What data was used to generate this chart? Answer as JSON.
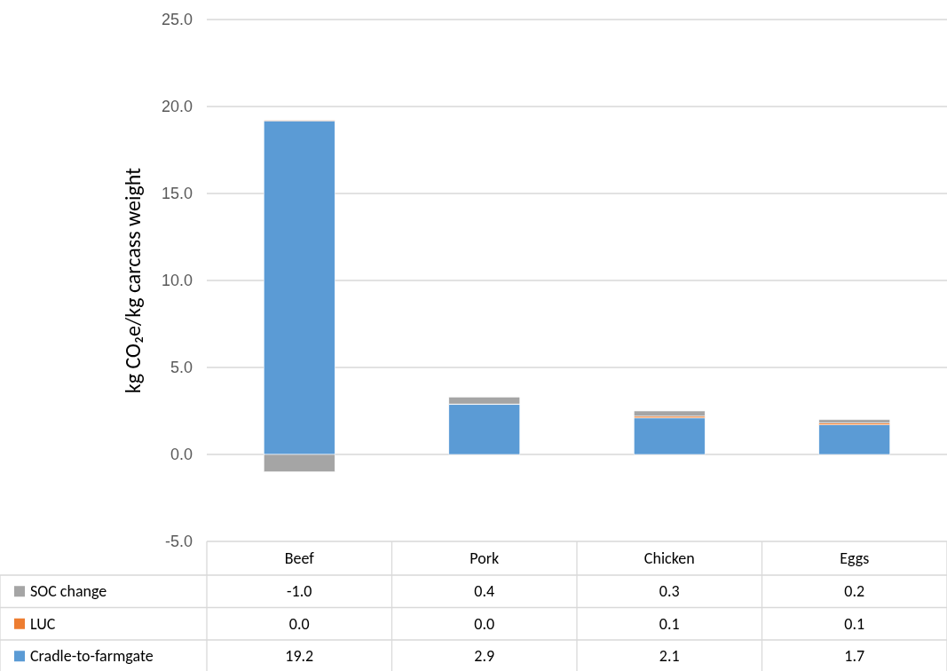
{
  "chart_data": {
    "type": "bar",
    "stacked": true,
    "ylabel": "kg CO₂e/kg carcass weight",
    "categories": [
      "Beef",
      "Pork",
      "Chicken",
      "Eggs"
    ],
    "series": [
      {
        "name": "Cradle-to-farmgate",
        "color": "#5b9bd5",
        "values": [
          19.2,
          2.9,
          2.1,
          1.7
        ],
        "value_labels": [
          "19.2",
          "2.9",
          "2.1",
          "1.7"
        ]
      },
      {
        "name": "LUC",
        "color": "#ed7d31",
        "values": [
          0.0,
          0.0,
          0.1,
          0.1
        ],
        "value_labels": [
          "0.0",
          "0.0",
          "0.1",
          "0.1"
        ]
      },
      {
        "name": "SOC change",
        "color": "#a5a5a5",
        "values": [
          -1.0,
          0.4,
          0.3,
          0.2
        ],
        "value_labels": [
          "-1.0",
          "0.4",
          "0.3",
          "0.2"
        ]
      }
    ],
    "ylim": [
      -5,
      25
    ],
    "yticks": [
      {
        "value": -5,
        "label": "-5.0"
      },
      {
        "value": 0,
        "label": "0.0"
      },
      {
        "value": 5,
        "label": "5.0"
      },
      {
        "value": 10,
        "label": "10.0"
      },
      {
        "value": 15,
        "label": "15.0"
      },
      {
        "value": 20,
        "label": "20.0"
      },
      {
        "value": 25,
        "label": "25.0"
      }
    ],
    "grid": "y",
    "legend": "bottom"
  }
}
